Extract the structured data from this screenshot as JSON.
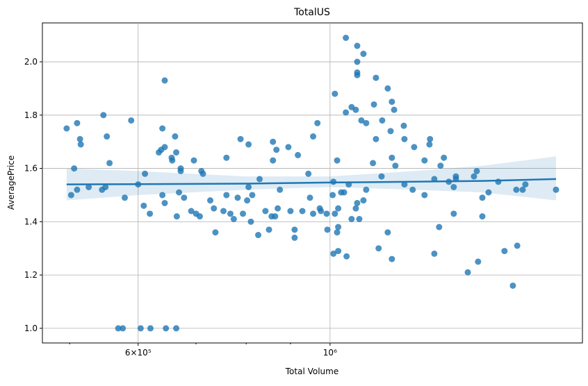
{
  "chart_data": {
    "type": "scatter",
    "title": "TotalUS",
    "x_label": "Total Volume",
    "y_label": "AveragePrice",
    "xscale": "log",
    "xlim": [
      465000,
      1958000
    ],
    "ylim": [
      0.945,
      2.146
    ],
    "xticks": [
      {
        "value": 600000,
        "label": "6×10⁵"
      },
      {
        "value": 1000000,
        "label": "10⁶"
      }
    ],
    "xminorticks": [
      500000,
      700000,
      800000,
      900000
    ],
    "yticks": [
      {
        "value": 1.0,
        "label": "1.0"
      },
      {
        "value": 1.2,
        "label": "1.2"
      },
      {
        "value": 1.4,
        "label": "1.4"
      },
      {
        "value": 1.6,
        "label": "1.6"
      },
      {
        "value": 1.8,
        "label": "1.8"
      },
      {
        "value": 2.0,
        "label": "2.0"
      }
    ],
    "grid": true,
    "points": {
      "color": "#1f77b4",
      "x": [
        496000,
        502000,
        506000,
        510000,
        510000,
        514000,
        515000,
        526000,
        545000,
        547000,
        550000,
        552000,
        556000,
        569000,
        576000,
        579000,
        589000,
        600000,
        604000,
        609000,
        611000,
        619000,
        620000,
        634000,
        638000,
        640000,
        640000,
        644000,
        644000,
        646000,
        644000,
        656000,
        657000,
        662000,
        664000,
        664000,
        665000,
        669000,
        672000,
        672000,
        678000,
        691000,
        696000,
        700000,
        707000,
        710000,
        713000,
        727000,
        734000,
        737000,
        753000,
        759000,
        759000,
        767000,
        774000,
        782000,
        788000,
        793000,
        802000,
        805000,
        805000,
        810000,
        813000,
        826000,
        829000,
        842000,
        850000,
        856000,
        859000,
        859000,
        864000,
        867000,
        870000,
        875000,
        895000,
        900000,
        910000,
        910000,
        918000,
        929000,
        944000,
        948000,
        956000,
        956000,
        967000,
        973000,
        976000,
        991000,
        993000,
        1007000,
        1009000,
        1009000,
        1013000,
        1013000,
        1019000,
        1019000,
        1022000,
        1022000,
        1022000,
        1030000,
        1038000,
        1043000,
        1043000,
        1045000,
        1051000,
        1059000,
        1059000,
        1071000,
        1071000,
        1075000,
        1075000,
        1075000,
        1075000,
        1075000,
        1081000,
        1087000,
        1093000,
        1093000,
        1101000,
        1101000,
        1121000,
        1124000,
        1130000,
        1130000,
        1138000,
        1147000,
        1149000,
        1166000,
        1166000,
        1175000,
        1179000,
        1179000,
        1179000,
        1186000,
        1190000,
        1217000,
        1219000,
        1219000,
        1246000,
        1251000,
        1286000,
        1286000,
        1303000,
        1305000,
        1320000,
        1320000,
        1337000,
        1342000,
        1354000,
        1372000,
        1390000,
        1390000,
        1398000,
        1398000,
        1443000,
        1467000,
        1478000,
        1483000,
        1500000,
        1500000,
        1525000,
        1565000,
        1591000,
        1627000,
        1642000,
        1646000,
        1670000,
        1682000,
        1825000
      ],
      "y": [
        1.75,
        1.5,
        1.6,
        1.77,
        1.52,
        1.71,
        1.69,
        1.53,
        1.52,
        1.8,
        1.53,
        1.72,
        1.62,
        1.0,
        1.0,
        1.49,
        1.78,
        1.54,
        1.0,
        1.46,
        1.58,
        1.43,
        1.0,
        1.66,
        1.67,
        1.5,
        1.75,
        1.68,
        1.47,
        1.0,
        1.93,
        1.64,
        1.63,
        1.72,
        1.0,
        1.66,
        1.42,
        1.51,
        1.6,
        1.59,
        1.49,
        1.44,
        1.63,
        1.43,
        1.42,
        1.59,
        1.58,
        1.48,
        1.45,
        1.36,
        1.44,
        1.64,
        1.5,
        1.43,
        1.41,
        1.49,
        1.71,
        1.43,
        1.48,
        1.69,
        1.53,
        1.4,
        1.5,
        1.35,
        1.56,
        1.44,
        1.37,
        1.42,
        1.63,
        1.7,
        1.42,
        1.67,
        1.45,
        1.52,
        1.68,
        1.44,
        1.37,
        1.34,
        1.65,
        1.44,
        1.58,
        1.49,
        1.72,
        1.43,
        1.77,
        1.45,
        1.44,
        1.43,
        1.37,
        1.5,
        1.55,
        1.28,
        1.43,
        1.88,
        1.63,
        1.36,
        1.45,
        1.38,
        1.29,
        1.51,
        1.51,
        1.81,
        2.09,
        1.27,
        1.54,
        1.83,
        1.41,
        1.82,
        1.45,
        1.96,
        2.06,
        1.95,
        2.0,
        1.47,
        1.41,
        1.78,
        1.48,
        2.03,
        1.77,
        1.52,
        1.62,
        1.84,
        1.71,
        1.94,
        1.3,
        1.57,
        1.78,
        1.9,
        1.36,
        1.74,
        1.85,
        1.26,
        1.64,
        1.82,
        1.61,
        1.76,
        1.71,
        1.54,
        1.52,
        1.68,
        1.5,
        1.63,
        1.69,
        1.71,
        1.56,
        1.28,
        1.38,
        1.61,
        1.64,
        1.55,
        1.53,
        1.43,
        1.56,
        1.57,
        1.21,
        1.57,
        1.59,
        1.25,
        1.49,
        1.42,
        1.51,
        1.55,
        1.29,
        1.16,
        1.52,
        1.31,
        1.52,
        1.54,
        1.52
      ]
    },
    "regression": {
      "color": "#1f77b4",
      "x": [
        496000,
        600000,
        800000,
        1000000,
        1250000,
        1500000,
        1825000
      ],
      "values": [
        1.54,
        1.541,
        1.543,
        1.547,
        1.55,
        1.553,
        1.56
      ],
      "lower": [
        1.48,
        1.5,
        1.52,
        1.53,
        1.52,
        1.51,
        1.48
      ],
      "upper": [
        1.6,
        1.59,
        1.57,
        1.57,
        1.59,
        1.61,
        1.645
      ]
    }
  }
}
